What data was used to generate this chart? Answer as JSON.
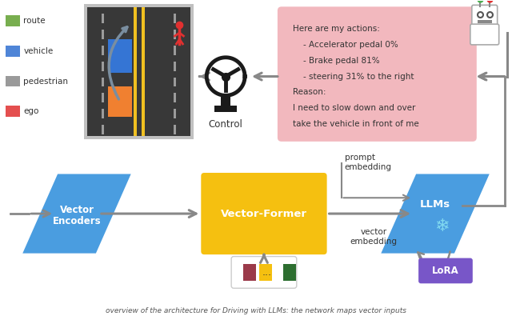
{
  "bg_color": "#ffffff",
  "road_color": "#383838",
  "road_bg_color": "#c8c8c8",
  "road_line_color": "#f0c020",
  "arrow_color": "#888888",
  "pink_box_color": "#f2b8be",
  "pink_box_text_line1": "Here are my actions:",
  "pink_box_text_line2": "    - Accelerator pedal 0%",
  "pink_box_text_line3": "    - Brake pedal 81%",
  "pink_box_text_line4": "    - steering 31% to the right",
  "pink_box_text_line5": "Reason:",
  "pink_box_text_line6": "I need to slow down and over",
  "pink_box_text_line7": "take the vehicle in front of me",
  "vector_encoder_color": "#4a9de0",
  "vector_former_color": "#f5c010",
  "llm_color": "#4a9de0",
  "lora_color": "#7856c8",
  "token_colors": [
    "#9b3a4a",
    "#f5c010",
    "#2d6e30"
  ],
  "legend_labels": [
    "route",
    "vehicle",
    "pedestrian",
    "ego"
  ],
  "caption": "overview of the architecture for Driving with LLMs: the network maps vector inputs"
}
